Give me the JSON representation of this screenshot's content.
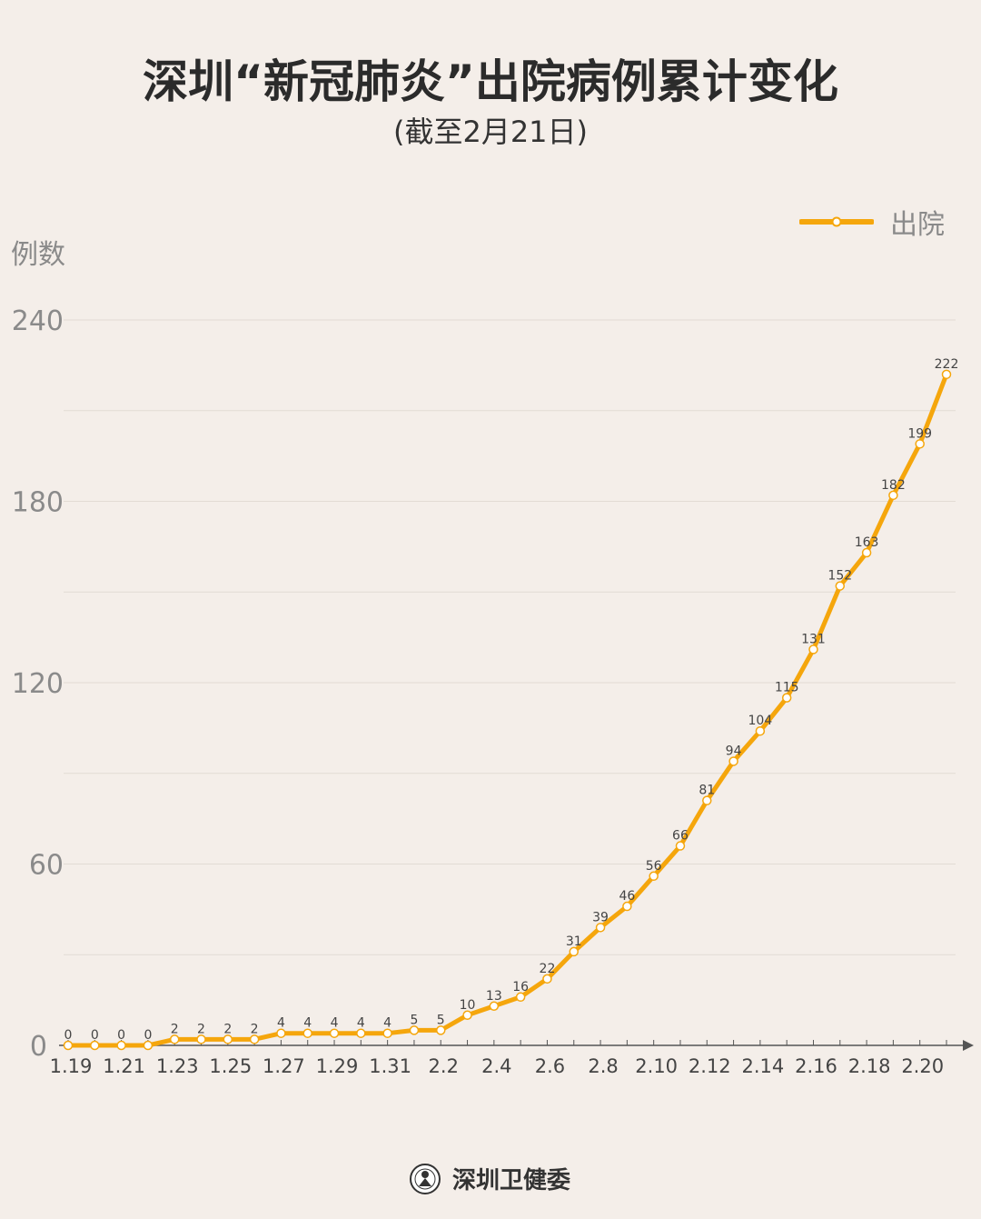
{
  "chart_data": {
    "type": "line",
    "title": "深圳“新冠肺炎”出院病例累计变化",
    "subtitle": "(截至2月21日)",
    "ylabel": "例数",
    "xlabel": "",
    "ylim": [
      0,
      240
    ],
    "yticks": [
      0,
      60,
      120,
      180,
      240
    ],
    "grid": true,
    "legend_position": "top-right",
    "x": [
      "1.19",
      "1.20",
      "1.21",
      "1.22",
      "1.23",
      "1.24",
      "1.25",
      "1.26",
      "1.27",
      "1.28",
      "1.29",
      "1.30",
      "1.31",
      "2.1",
      "2.2",
      "2.3",
      "2.4",
      "2.5",
      "2.6",
      "2.7",
      "2.8",
      "2.9",
      "2.10",
      "2.11",
      "2.12",
      "2.13",
      "2.14",
      "2.15",
      "2.16",
      "2.17",
      "2.18",
      "2.19",
      "2.20",
      "2.21"
    ],
    "xtick_labels": [
      "1.19",
      "1.21",
      "1.23",
      "1.25",
      "1.27",
      "1.29",
      "1.31",
      "2.2",
      "2.4",
      "2.6",
      "2.8",
      "2.10",
      "2.12",
      "2.14",
      "2.16",
      "2.18",
      "2.20"
    ],
    "series": [
      {
        "name": "出院",
        "color": "#f5a60c",
        "values": [
          0,
          0,
          0,
          0,
          2,
          2,
          2,
          2,
          4,
          4,
          4,
          4,
          4,
          5,
          5,
          10,
          13,
          16,
          22,
          31,
          39,
          46,
          56,
          66,
          81,
          94,
          104,
          115,
          131,
          152,
          163,
          182,
          199,
          222
        ]
      }
    ]
  },
  "footer": {
    "org": "深圳卫健委",
    "logo_icon": "shenzhen-health-commission-logo"
  }
}
